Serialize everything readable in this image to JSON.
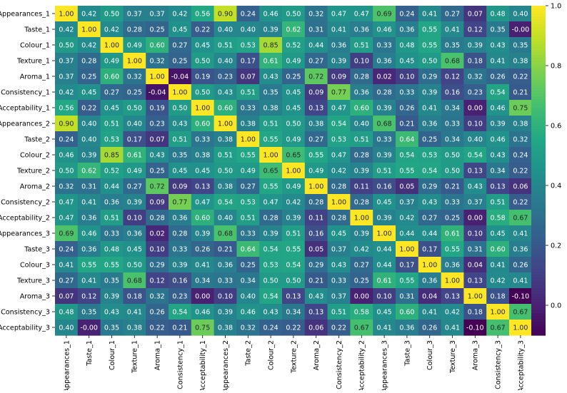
{
  "chart_data": {
    "type": "heatmap",
    "title": "",
    "xlabel": "",
    "ylabel": "",
    "colormap": "viridis",
    "categories": [
      "Appearances_1",
      "Taste_1",
      "Colour_1",
      "Texture_1",
      "Aroma_1",
      "Consistency_1",
      "Acceptability_1",
      "Appearances_2",
      "Taste_2",
      "Colour_2",
      "Texture_2",
      "Aroma_2",
      "Consistency_2",
      "Acceptability_2",
      "Appearances_3",
      "Taste_3",
      "Colour_3",
      "Texture_3",
      "Aroma_3",
      "Consistency_3",
      "Acceptability_3"
    ],
    "matrix": [
      [
        1.0,
        0.42,
        0.5,
        0.37,
        0.37,
        0.42,
        0.56,
        0.9,
        0.24,
        0.46,
        0.5,
        0.32,
        0.47,
        0.47,
        0.69,
        0.24,
        0.41,
        0.27,
        0.07,
        0.48,
        0.4
      ],
      [
        0.42,
        1.0,
        0.42,
        0.28,
        0.25,
        0.45,
        0.22,
        0.4,
        0.4,
        0.39,
        0.62,
        0.31,
        0.41,
        0.36,
        0.46,
        0.36,
        0.55,
        0.41,
        0.12,
        0.35,
        -0.0
      ],
      [
        0.5,
        0.42,
        1.0,
        0.49,
        0.6,
        0.27,
        0.45,
        0.51,
        0.53,
        0.85,
        0.52,
        0.44,
        0.36,
        0.51,
        0.33,
        0.48,
        0.55,
        0.35,
        0.39,
        0.43,
        0.35
      ],
      [
        0.37,
        0.28,
        0.49,
        1.0,
        0.32,
        0.25,
        0.5,
        0.4,
        0.17,
        0.61,
        0.49,
        0.27,
        0.39,
        0.1,
        0.36,
        0.45,
        0.5,
        0.68,
        0.18,
        0.41,
        0.38
      ],
      [
        0.37,
        0.25,
        0.6,
        0.32,
        1.0,
        -0.04,
        0.19,
        0.23,
        0.07,
        0.43,
        0.25,
        0.72,
        0.09,
        0.28,
        0.02,
        0.1,
        0.29,
        0.12,
        0.32,
        0.26,
        0.22
      ],
      [
        0.42,
        0.45,
        0.27,
        0.25,
        -0.04,
        1.0,
        0.5,
        0.43,
        0.51,
        0.35,
        0.45,
        0.09,
        0.77,
        0.36,
        0.28,
        0.33,
        0.39,
        0.16,
        0.23,
        0.54,
        0.21
      ],
      [
        0.56,
        0.22,
        0.45,
        0.5,
        0.19,
        0.5,
        1.0,
        0.6,
        0.33,
        0.38,
        0.45,
        0.13,
        0.47,
        0.6,
        0.39,
        0.26,
        0.41,
        0.34,
        0.0,
        0.46,
        0.75
      ],
      [
        0.9,
        0.4,
        0.51,
        0.4,
        0.23,
        0.43,
        0.6,
        1.0,
        0.38,
        0.51,
        0.5,
        0.38,
        0.54,
        0.4,
        0.68,
        0.21,
        0.36,
        0.33,
        0.1,
        0.39,
        0.38
      ],
      [
        0.24,
        0.4,
        0.53,
        0.17,
        0.07,
        0.51,
        0.33,
        0.38,
        1.0,
        0.55,
        0.49,
        0.27,
        0.53,
        0.51,
        0.33,
        0.64,
        0.25,
        0.34,
        0.4,
        0.46,
        0.32
      ],
      [
        0.46,
        0.39,
        0.85,
        0.61,
        0.43,
        0.35,
        0.38,
        0.51,
        0.55,
        1.0,
        0.65,
        0.55,
        0.47,
        0.28,
        0.39,
        0.54,
        0.53,
        0.5,
        0.54,
        0.43,
        0.24
      ],
      [
        0.5,
        0.62,
        0.52,
        0.49,
        0.25,
        0.45,
        0.45,
        0.5,
        0.49,
        0.65,
        1.0,
        0.49,
        0.42,
        0.39,
        0.51,
        0.55,
        0.54,
        0.5,
        0.13,
        0.34,
        0.22
      ],
      [
        0.32,
        0.31,
        0.44,
        0.27,
        0.72,
        0.09,
        0.13,
        0.38,
        0.27,
        0.55,
        0.49,
        1.0,
        0.28,
        0.11,
        0.16,
        0.05,
        0.29,
        0.21,
        0.43,
        0.13,
        0.06
      ],
      [
        0.47,
        0.41,
        0.36,
        0.39,
        0.09,
        0.77,
        0.47,
        0.54,
        0.53,
        0.47,
        0.42,
        0.28,
        1.0,
        0.28,
        0.45,
        0.37,
        0.43,
        0.33,
        0.37,
        0.51,
        0.22
      ],
      [
        0.47,
        0.36,
        0.51,
        0.1,
        0.28,
        0.36,
        0.6,
        0.4,
        0.51,
        0.28,
        0.39,
        0.11,
        0.28,
        1.0,
        0.39,
        0.42,
        0.27,
        0.25,
        0.0,
        0.58,
        0.67
      ],
      [
        0.69,
        0.46,
        0.33,
        0.36,
        0.02,
        0.28,
        0.39,
        0.68,
        0.33,
        0.39,
        0.51,
        0.16,
        0.45,
        0.39,
        1.0,
        0.44,
        0.44,
        0.61,
        0.1,
        0.45,
        0.41
      ],
      [
        0.24,
        0.36,
        0.48,
        0.45,
        0.1,
        0.33,
        0.26,
        0.21,
        0.64,
        0.54,
        0.55,
        0.05,
        0.37,
        0.42,
        0.44,
        1.0,
        0.17,
        0.55,
        0.31,
        0.6,
        0.36
      ],
      [
        0.41,
        0.55,
        0.55,
        0.5,
        0.29,
        0.39,
        0.41,
        0.36,
        0.25,
        0.53,
        0.54,
        0.29,
        0.43,
        0.27,
        0.44,
        0.17,
        1.0,
        0.36,
        0.04,
        0.41,
        0.26
      ],
      [
        0.27,
        0.41,
        0.35,
        0.68,
        0.12,
        0.16,
        0.34,
        0.33,
        0.34,
        0.5,
        0.5,
        0.21,
        0.33,
        0.25,
        0.61,
        0.55,
        0.36,
        1.0,
        0.13,
        0.42,
        0.41
      ],
      [
        0.07,
        0.12,
        0.39,
        0.18,
        0.32,
        0.23,
        0.0,
        0.1,
        0.4,
        0.54,
        0.13,
        0.43,
        0.37,
        0.0,
        0.1,
        0.31,
        0.04,
        0.13,
        1.0,
        0.18,
        -0.1
      ],
      [
        0.48,
        0.35,
        0.43,
        0.41,
        0.26,
        0.54,
        0.46,
        0.39,
        0.46,
        0.43,
        0.34,
        0.13,
        0.51,
        0.58,
        0.45,
        0.6,
        0.41,
        0.42,
        0.18,
        1.0,
        0.67
      ],
      [
        0.4,
        -0.0,
        0.35,
        0.38,
        0.22,
        0.21,
        0.75,
        0.38,
        0.32,
        0.24,
        0.22,
        0.06,
        0.22,
        0.67,
        0.41,
        0.36,
        0.26,
        0.41,
        -0.1,
        0.67,
        1.0
      ]
    ],
    "value_format": "two decimals",
    "colorbar": {
      "vmin": -0.1,
      "vmax": 1.0,
      "ticks": [
        0.0,
        0.2,
        0.4,
        0.6,
        0.8,
        1.0
      ],
      "tick_labels": [
        "0.0",
        "0.2",
        "0.4",
        "0.6",
        "0.8",
        "1.0"
      ]
    },
    "grid": false,
    "legend": "colorbar-right"
  }
}
